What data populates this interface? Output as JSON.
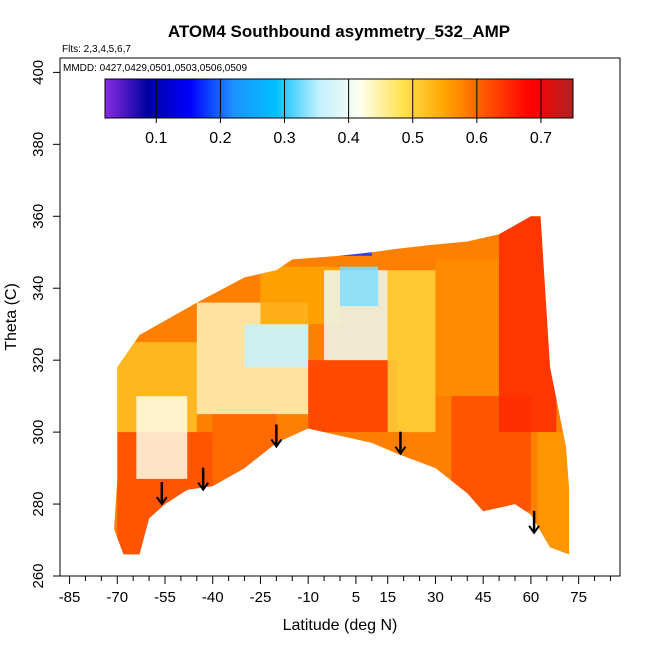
{
  "chart_data": {
    "type": "heatmap",
    "title": "ATOM4 Southbound asymmetry_532_AMP",
    "flights_note": "Flts: 2,3,4,5,6,7",
    "dates_note": "MMDD: 0427,0429,0501,0503,0506,0509",
    "xlabel": "Latitude (deg N)",
    "ylabel": "Theta (C)",
    "xlim": [
      -88,
      88
    ],
    "ylim": [
      260,
      404
    ],
    "x_ticks": [
      -85,
      -70,
      -55,
      -40,
      -25,
      -10,
      5,
      15,
      30,
      45,
      60,
      75
    ],
    "x_ticks_minor": [
      -80,
      -75,
      -65,
      -60,
      -50,
      -45,
      -35,
      -30,
      -20,
      -15,
      -5,
      0,
      10,
      20,
      25,
      35,
      40,
      50,
      55,
      65,
      70,
      80,
      85
    ],
    "y_ticks": [
      260,
      280,
      300,
      320,
      340,
      360,
      380,
      400
    ],
    "colorbar": {
      "range": [
        0.02,
        0.75
      ],
      "ticks": [
        0.1,
        0.2,
        0.3,
        0.4,
        0.5,
        0.6,
        0.7
      ],
      "colors": [
        "#8a2be2",
        "#0000a0",
        "#0000ff",
        "#1e90ff",
        "#00bfff",
        "#bfefff",
        "#fffff0",
        "#ffe24d",
        "#ffa500",
        "#ff5000",
        "#ff0000",
        "#b22222"
      ]
    },
    "region_top": [
      [
        -70,
        318
      ],
      [
        -63,
        327
      ],
      [
        -55,
        331
      ],
      [
        -45,
        336
      ],
      [
        -30,
        343
      ],
      [
        -20,
        345
      ],
      [
        -15,
        348
      ],
      [
        0,
        349
      ],
      [
        10,
        350
      ],
      [
        18,
        351
      ],
      [
        28,
        352
      ],
      [
        40,
        353
      ],
      [
        50,
        355
      ],
      [
        56,
        358
      ],
      [
        60,
        360
      ],
      [
        63,
        360
      ],
      [
        66,
        318
      ],
      [
        71,
        296
      ],
      [
        72,
        284
      ],
      [
        72,
        266
      ]
    ],
    "region_bottom": [
      [
        -70,
        318
      ],
      [
        -70,
        287
      ],
      [
        -71,
        273
      ],
      [
        -68,
        266
      ],
      [
        -63,
        266
      ],
      [
        -60,
        276
      ],
      [
        -55,
        280
      ],
      [
        -48,
        284
      ],
      [
        -40,
        285
      ],
      [
        -30,
        290
      ],
      [
        -20,
        297
      ],
      [
        -10,
        301
      ],
      [
        0,
        299
      ],
      [
        10,
        297
      ],
      [
        18,
        294
      ],
      [
        30,
        290
      ],
      [
        40,
        283
      ],
      [
        45,
        278
      ],
      [
        55,
        280
      ],
      [
        60,
        277
      ],
      [
        66,
        268
      ],
      [
        72,
        266
      ]
    ],
    "region_bands": [
      {
        "x": [
          -70,
          -40
        ],
        "y": [
          266,
          300
        ],
        "value": 0.62
      },
      {
        "x": [
          -70,
          -45
        ],
        "y": [
          300,
          325
        ],
        "value": 0.52
      },
      {
        "x": [
          -64,
          -48
        ],
        "y": [
          287,
          310
        ],
        "value": 0.42
      },
      {
        "x": [
          -45,
          -10
        ],
        "y": [
          305,
          336
        ],
        "value": 0.44
      },
      {
        "x": [
          -40,
          -20
        ],
        "y": [
          285,
          305
        ],
        "value": 0.6
      },
      {
        "x": [
          -30,
          -10
        ],
        "y": [
          318,
          330
        ],
        "value": 0.36
      },
      {
        "x": [
          -25,
          0
        ],
        "y": [
          330,
          346
        ],
        "value": 0.55
      },
      {
        "x": [
          -10,
          18
        ],
        "y": [
          300,
          320
        ],
        "value": 0.63
      },
      {
        "x": [
          -5,
          15
        ],
        "y": [
          320,
          345
        ],
        "value": 0.4
      },
      {
        "x": [
          0,
          12
        ],
        "y": [
          335,
          346
        ],
        "value": 0.33
      },
      {
        "x": [
          15,
          30
        ],
        "y": [
          300,
          345
        ],
        "value": 0.5
      },
      {
        "x": [
          30,
          50
        ],
        "y": [
          310,
          348
        ],
        "value": 0.57
      },
      {
        "x": [
          35,
          60
        ],
        "y": [
          278,
          310
        ],
        "value": 0.62
      },
      {
        "x": [
          50,
          68
        ],
        "y": [
          300,
          360
        ],
        "value": 0.65
      },
      {
        "x": [
          62,
          72
        ],
        "y": [
          266,
          300
        ],
        "value": 0.56
      },
      {
        "x": [
          -5,
          10
        ],
        "y": [
          349,
          351
        ],
        "value": 0.18
      }
    ],
    "arrows": [
      {
        "lat": -56,
        "theta": 280
      },
      {
        "lat": -43,
        "theta": 284
      },
      {
        "lat": -20,
        "theta": 296
      },
      {
        "lat": 19,
        "theta": 294
      },
      {
        "lat": 61,
        "theta": 272
      }
    ]
  }
}
